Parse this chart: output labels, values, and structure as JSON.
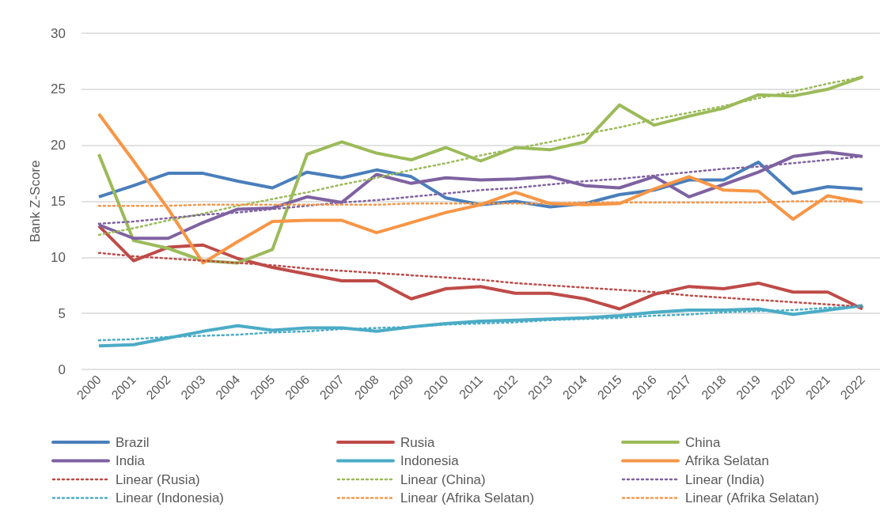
{
  "chart_data": {
    "type": "line",
    "ylabel": "Bank Z-Score",
    "categories": [
      "2000",
      "2001",
      "2002",
      "2003",
      "2004",
      "2005",
      "2006",
      "2007",
      "2008",
      "2009",
      "2010",
      "2011",
      "2012",
      "2013",
      "2014",
      "2015",
      "2016",
      "2017",
      "2018",
      "2019",
      "2020",
      "2021",
      "2022"
    ],
    "ylim": [
      0,
      30
    ],
    "yticks": [
      0,
      5,
      10,
      15,
      20,
      25,
      30
    ],
    "grid": "y",
    "legend": "bottom",
    "marker": "none",
    "line_style": "solid",
    "series": [
      {
        "name": "Brazil",
        "color": "#4a7ebb",
        "values": [
          15.4,
          16.4,
          17.5,
          17.5,
          16.8,
          16.2,
          17.6,
          17.1,
          17.8,
          17.2,
          15.3,
          14.7,
          15.0,
          14.5,
          14.8,
          15.6,
          16.0,
          16.9,
          16.9,
          18.5,
          15.7,
          16.3,
          16.1
        ]
      },
      {
        "name": "Rusia",
        "color": "#be4b48",
        "values": [
          12.8,
          9.7,
          10.9,
          11.1,
          9.9,
          9.1,
          8.5,
          7.9,
          7.9,
          6.3,
          7.2,
          7.4,
          6.8,
          6.8,
          6.3,
          5.4,
          6.7,
          7.4,
          7.2,
          7.7,
          6.9,
          6.9,
          5.4
        ]
      },
      {
        "name": "China",
        "color": "#9bbb59",
        "values": [
          19.2,
          11.5,
          10.8,
          9.7,
          9.5,
          10.7,
          19.2,
          20.3,
          19.3,
          18.7,
          19.8,
          18.6,
          19.8,
          19.6,
          20.3,
          23.6,
          21.8,
          22.6,
          23.3,
          24.5,
          24.4,
          25.0,
          26.1
        ]
      },
      {
        "name": "India",
        "color": "#7f62a1",
        "values": [
          12.9,
          11.7,
          11.7,
          13.1,
          14.3,
          14.4,
          15.4,
          14.9,
          17.4,
          16.6,
          17.1,
          16.9,
          17.0,
          17.2,
          16.4,
          16.2,
          17.2,
          15.4,
          16.5,
          17.6,
          19.0,
          19.4,
          19.0
        ]
      },
      {
        "name": "Indonesia",
        "color": "#4bacc6",
        "values": [
          2.1,
          2.2,
          2.8,
          3.4,
          3.9,
          3.5,
          3.7,
          3.7,
          3.4,
          3.8,
          4.1,
          4.3,
          4.4,
          4.5,
          4.6,
          4.8,
          5.1,
          5.3,
          5.3,
          5.4,
          4.9,
          5.3,
          5.7
        ]
      },
      {
        "name": "Afrika Selatan",
        "color": "#f79646",
        "values": [
          22.8,
          18.6,
          14.3,
          9.5,
          11.4,
          13.2,
          13.3,
          13.3,
          12.2,
          13.1,
          14.0,
          14.7,
          15.8,
          14.8,
          14.7,
          14.8,
          16.1,
          17.2,
          16.0,
          15.9,
          13.4,
          15.5,
          14.9
        ]
      },
      {
        "name": "Linear (Rusia)",
        "color": "#be4b48",
        "line_style": "dotted",
        "values": [
          10.4,
          10.1,
          9.9,
          9.7,
          9.5,
          9.3,
          9.0,
          8.8,
          8.6,
          8.4,
          8.2,
          8.0,
          7.7,
          7.5,
          7.3,
          7.1,
          6.9,
          6.6,
          6.4,
          6.2,
          6.0,
          5.8,
          5.6
        ]
      },
      {
        "name": "Linear (China)",
        "color": "#9bbb59",
        "line_style": "dotted",
        "values": [
          12.0,
          12.6,
          13.3,
          13.9,
          14.6,
          15.2,
          15.8,
          16.5,
          17.1,
          17.8,
          18.4,
          19.1,
          19.7,
          20.3,
          21.0,
          21.6,
          22.3,
          22.9,
          23.5,
          24.2,
          24.8,
          25.5,
          26.1
        ]
      },
      {
        "name": "Linear (India)",
        "color": "#7f62a1",
        "line_style": "dotted",
        "values": [
          13.0,
          13.2,
          13.5,
          13.8,
          14.0,
          14.3,
          14.6,
          14.9,
          15.1,
          15.4,
          15.7,
          16.0,
          16.2,
          16.5,
          16.8,
          17.0,
          17.3,
          17.6,
          17.9,
          18.1,
          18.4,
          18.7,
          19.0
        ]
      },
      {
        "name": "Linear (Indonesia)",
        "color": "#4bacc6",
        "line_style": "dotted",
        "values": [
          2.6,
          2.7,
          2.9,
          3.0,
          3.1,
          3.3,
          3.4,
          3.6,
          3.7,
          3.8,
          4.0,
          4.1,
          4.2,
          4.4,
          4.5,
          4.6,
          4.8,
          4.9,
          5.1,
          5.2,
          5.3,
          5.5,
          5.6
        ]
      },
      {
        "name": "Linear (Afrika Selatan)",
        "color": "#f79646",
        "line_style": "dotted",
        "values": [
          14.6,
          14.6,
          14.6,
          14.7,
          14.7,
          14.7,
          14.7,
          14.7,
          14.7,
          14.8,
          14.8,
          14.8,
          14.8,
          14.8,
          14.9,
          14.9,
          14.9,
          14.9,
          14.9,
          14.9,
          15.0,
          15.0,
          15.0
        ]
      },
      {
        "name": "Linear (Afrika Selatan)",
        "color": "#f79646",
        "line_style": "dotted",
        "values": [
          null,
          null,
          null,
          null,
          null,
          null,
          null,
          null,
          null,
          null,
          null,
          null,
          null,
          null,
          null,
          null,
          null,
          null,
          null,
          null,
          null,
          null,
          null
        ]
      }
    ]
  }
}
